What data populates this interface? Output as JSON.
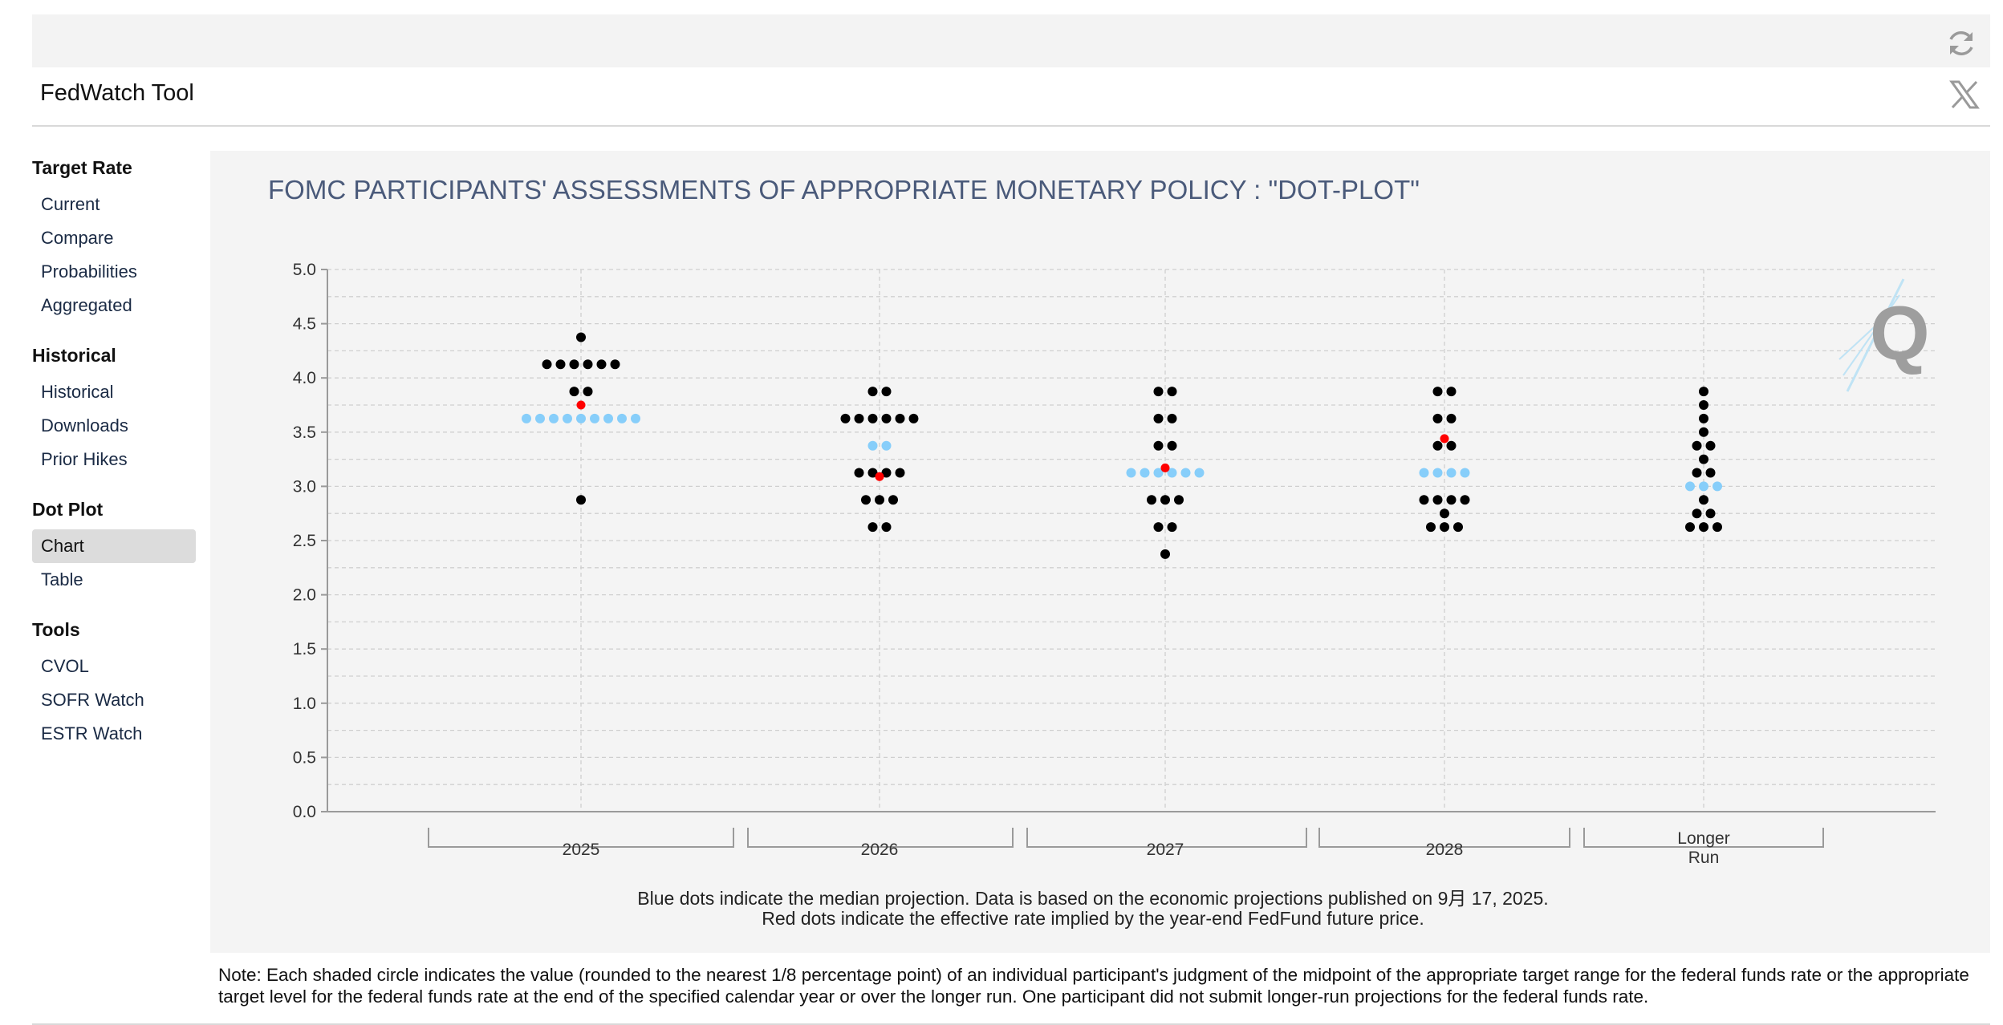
{
  "app": {
    "title": "FedWatch Tool"
  },
  "icons": {
    "refresh": "refresh-icon",
    "share": "x-logo-icon",
    "watermark": "q-logo-icon"
  },
  "sidebar": {
    "groups": [
      {
        "heading": "Target Rate",
        "items": [
          {
            "label": "Current"
          },
          {
            "label": "Compare"
          },
          {
            "label": "Probabilities"
          },
          {
            "label": "Aggregated"
          }
        ]
      },
      {
        "heading": "Historical",
        "items": [
          {
            "label": "Historical"
          },
          {
            "label": "Downloads"
          },
          {
            "label": "Prior Hikes"
          }
        ]
      },
      {
        "heading": "Dot Plot",
        "items": [
          {
            "label": "Chart",
            "active": true
          },
          {
            "label": "Table"
          }
        ]
      },
      {
        "heading": "Tools",
        "items": [
          {
            "label": "CVOL"
          },
          {
            "label": "SOFR Watch"
          },
          {
            "label": "ESTR Watch"
          }
        ]
      }
    ]
  },
  "chart_data": {
    "type": "scatter",
    "title": "FOMC PARTICIPANTS' ASSESSMENTS OF APPROPRIATE MONETARY POLICY : \"DOT-PLOT\"",
    "ylim": [
      0,
      5
    ],
    "yticks": [
      "0.0",
      "0.5",
      "1.0",
      "1.5",
      "2.0",
      "2.5",
      "3.0",
      "3.5",
      "4.0",
      "4.5",
      "5.0"
    ],
    "grid": true,
    "categories": [
      "2025",
      "2026",
      "2027",
      "2028",
      "Longer Run"
    ],
    "colors": {
      "participant": "#000000",
      "median": "#87cefa",
      "futures": "#ff0000"
    },
    "participant_dots": [
      {
        "category": "2025",
        "points": [
          {
            "y": 4.375,
            "n": 1
          },
          {
            "y": 4.125,
            "n": 6
          },
          {
            "y": 3.875,
            "n": 2
          },
          {
            "y": 3.625,
            "n": 9
          },
          {
            "y": 2.875,
            "n": 1
          }
        ]
      },
      {
        "category": "2026",
        "points": [
          {
            "y": 3.875,
            "n": 2
          },
          {
            "y": 3.625,
            "n": 6
          },
          {
            "y": 3.375,
            "n": 2
          },
          {
            "y": 3.125,
            "n": 4
          },
          {
            "y": 2.875,
            "n": 3
          },
          {
            "y": 2.625,
            "n": 2
          }
        ]
      },
      {
        "category": "2027",
        "points": [
          {
            "y": 3.875,
            "n": 2
          },
          {
            "y": 3.625,
            "n": 2
          },
          {
            "y": 3.375,
            "n": 2
          },
          {
            "y": 3.125,
            "n": 6
          },
          {
            "y": 2.875,
            "n": 3
          },
          {
            "y": 2.625,
            "n": 2
          },
          {
            "y": 2.375,
            "n": 1
          }
        ]
      },
      {
        "category": "2028",
        "points": [
          {
            "y": 3.875,
            "n": 2
          },
          {
            "y": 3.625,
            "n": 2
          },
          {
            "y": 3.375,
            "n": 2
          },
          {
            "y": 3.125,
            "n": 4
          },
          {
            "y": 2.875,
            "n": 4
          },
          {
            "y": 2.75,
            "n": 1
          },
          {
            "y": 2.625,
            "n": 3
          }
        ]
      },
      {
        "category": "Longer Run",
        "points": [
          {
            "y": 3.875,
            "n": 1
          },
          {
            "y": 3.75,
            "n": 1
          },
          {
            "y": 3.625,
            "n": 1
          },
          {
            "y": 3.5,
            "n": 1
          },
          {
            "y": 3.375,
            "n": 2
          },
          {
            "y": 3.25,
            "n": 1
          },
          {
            "y": 3.125,
            "n": 2
          },
          {
            "y": 3.0,
            "n": 3
          },
          {
            "y": 2.875,
            "n": 1
          },
          {
            "y": 2.75,
            "n": 2
          },
          {
            "y": 2.625,
            "n": 3
          }
        ]
      }
    ],
    "median": [
      {
        "category": "2025",
        "y": 3.625
      },
      {
        "category": "2026",
        "y": 3.375
      },
      {
        "category": "2027",
        "y": 3.125
      },
      {
        "category": "2028",
        "y": 3.125
      },
      {
        "category": "Longer Run",
        "y": 3.0
      }
    ],
    "futures_implied": [
      {
        "category": "2025",
        "y": 3.75
      },
      {
        "category": "2026",
        "y": 3.09
      },
      {
        "category": "2027",
        "y": 3.17
      },
      {
        "category": "2028",
        "y": 3.44
      }
    ],
    "footnote_lines": [
      "Blue dots indicate the median projection. Data is based on the economic projections published on 9月 17, 2025.",
      "Red dots indicate the effective rate implied by the year-end FedFund future price."
    ]
  },
  "note": "Note: Each shaded circle indicates the value (rounded to the nearest 1/8 percentage point) of an individual participant's judgment of the midpoint of the appropriate target range for the federal funds rate or the appropriate target level for the federal funds rate at the end of the specified calendar year or over the longer run. One participant did not submit longer-run projections for the federal funds rate."
}
